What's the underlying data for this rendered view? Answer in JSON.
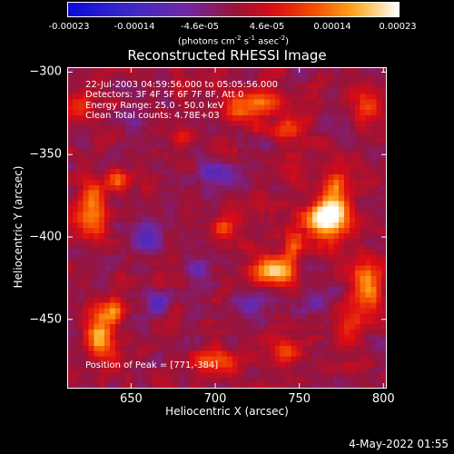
{
  "colorbar": {
    "ticks": [
      "-0.00023",
      "-0.00014",
      "-4.6e-05",
      "4.6e-05",
      "0.00014",
      "0.00023"
    ],
    "unit_prefix": "(photons cm",
    "unit_sup1": "-2",
    "unit_mid1": " s",
    "unit_sup2": "-1",
    "unit_mid2": " asec",
    "unit_sup3": "-2",
    "unit_suffix": ")"
  },
  "annotations": {
    "time": "22-Jul-2003 04:59:56.000 to 05:05:56.000",
    "detectors": "Detectors: 3F 4F 5F 6F 7F 8F, Att 0",
    "energy": "Energy Range: 25.0 - 50.0 keV",
    "clean": "Clean    Total counts: 4.78E+03",
    "peak": "Position of Peak = [771,-384]"
  },
  "date_stamp": "4-May-2022 01:55",
  "chart_data": {
    "type": "heatmap",
    "title": "Reconstructed RHESSI Image",
    "xlabel": "Heliocentric X (arcsec)",
    "ylabel": "Heliocentric Y (arcsec)",
    "xlim": [
      612,
      802
    ],
    "ylim": [
      -492,
      -297
    ],
    "xticks": [
      650,
      700,
      750,
      800
    ],
    "yticks": [
      -300,
      -350,
      -400,
      -450
    ],
    "zlim": [
      -0.00023,
      0.00023
    ],
    "grid": false,
    "peak": [
      771,
      -384
    ],
    "blobs": [
      {
        "x": 771,
        "y": -384,
        "sx": 6,
        "sy": 14,
        "z": 0.00023
      },
      {
        "x": 760,
        "y": -390,
        "sx": 6,
        "sy": 6,
        "z": 0.00017
      },
      {
        "x": 735,
        "y": -420,
        "sx": 9,
        "sy": 6,
        "z": 0.00019
      },
      {
        "x": 746,
        "y": -405,
        "sx": 4,
        "sy": 6,
        "z": 0.00012
      },
      {
        "x": 632,
        "y": -460,
        "sx": 6,
        "sy": 10,
        "z": 0.0002
      },
      {
        "x": 640,
        "y": -445,
        "sx": 4,
        "sy": 5,
        "z": 0.00013
      },
      {
        "x": 720,
        "y": -320,
        "sx": 12,
        "sy": 6,
        "z": 0.00014
      },
      {
        "x": 745,
        "y": -335,
        "sx": 8,
        "sy": 5,
        "z": 0.0001
      },
      {
        "x": 626,
        "y": -385,
        "sx": 6,
        "sy": 12,
        "z": 0.00016
      },
      {
        "x": 642,
        "y": -365,
        "sx": 5,
        "sy": 5,
        "z": 0.00011
      },
      {
        "x": 790,
        "y": -430,
        "sx": 7,
        "sy": 12,
        "z": 0.00013
      },
      {
        "x": 780,
        "y": -455,
        "sx": 5,
        "sy": 7,
        "z": 0.0001
      },
      {
        "x": 700,
        "y": -475,
        "sx": 9,
        "sy": 5,
        "z": 0.00012
      },
      {
        "x": 740,
        "y": -470,
        "sx": 7,
        "sy": 5,
        "z": 0.0001
      },
      {
        "x": 705,
        "y": -395,
        "sx": 4,
        "sy": 4,
        "z": 0.00011
      },
      {
        "x": 790,
        "y": -320,
        "sx": 6,
        "sy": 6,
        "z": 0.00011
      },
      {
        "x": 680,
        "y": -340,
        "sx": 5,
        "sy": 5,
        "z": 8e-05
      },
      {
        "x": 620,
        "y": -320,
        "sx": 6,
        "sy": 6,
        "z": 9e-05
      },
      {
        "x": 665,
        "y": -440,
        "sx": 5,
        "sy": 5,
        "z": -0.0001
      },
      {
        "x": 700,
        "y": -360,
        "sx": 7,
        "sy": 5,
        "z": -0.00012
      },
      {
        "x": 660,
        "y": -400,
        "sx": 6,
        "sy": 6,
        "z": -0.00011
      },
      {
        "x": 720,
        "y": -440,
        "sx": 6,
        "sy": 5,
        "z": -0.0001
      },
      {
        "x": 650,
        "y": -330,
        "sx": 5,
        "sy": 5,
        "z": -9e-05
      },
      {
        "x": 690,
        "y": -420,
        "sx": 5,
        "sy": 5,
        "z": -9e-05
      },
      {
        "x": 760,
        "y": -440,
        "sx": 4,
        "sy": 4,
        "z": -8e-05
      }
    ]
  },
  "colors": {
    "background": "#000000",
    "text": "#ffffff"
  }
}
